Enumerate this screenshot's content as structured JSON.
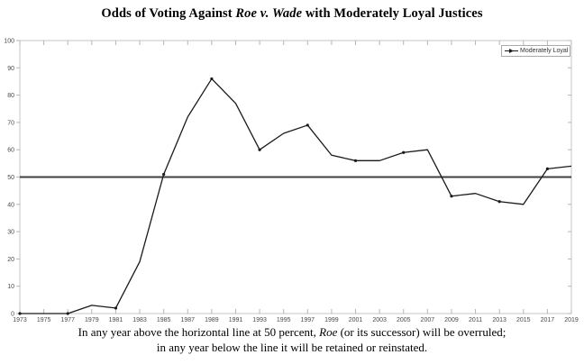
{
  "title": {
    "prefix": "Odds of Voting Against ",
    "italic": "Roe v. Wade",
    "suffix": " with Moderately Loyal Justices"
  },
  "legend": {
    "label": "Moderately Loyal",
    "marker_icon": "line-arrow-marker"
  },
  "caption": {
    "line1_pre": "In any year above the horizontal line at 50 percent, ",
    "line1_italic": "Roe",
    "line1_post": " (or its successor) will be overruled;",
    "line2": "in any year below the line it will be retained or reinstated."
  },
  "colors": {
    "line": "#1a1a1a",
    "reference_line": "#3f3f3f",
    "plot_border": "#c4c4c4",
    "tick": "#b5b5b5",
    "tick_label": "#4a4a4a"
  },
  "chart_data": {
    "type": "line",
    "title": "Odds of Voting Against Roe v. Wade with Moderately Loyal Justices",
    "xlabel": "",
    "ylabel": "",
    "xlim": [
      1973,
      2019
    ],
    "ylim": [
      0,
      100
    ],
    "grid": false,
    "legend_position": "top-right",
    "x_ticks": [
      1973,
      1975,
      1977,
      1979,
      1981,
      1983,
      1985,
      1987,
      1989,
      1991,
      1993,
      1995,
      1997,
      1999,
      2001,
      2003,
      2005,
      2007,
      2009,
      2011,
      2013,
      2015,
      2017,
      2019
    ],
    "y_ticks": [
      0,
      10,
      20,
      30,
      40,
      50,
      60,
      70,
      80,
      90,
      100
    ],
    "reference_line": {
      "y": 50
    },
    "marker_every": 2,
    "series": [
      {
        "name": "Moderately Loyal",
        "x": [
          1973,
          1975,
          1977,
          1979,
          1981,
          1983,
          1985,
          1987,
          1989,
          1991,
          1993,
          1995,
          1997,
          1999,
          2001,
          2003,
          2005,
          2007,
          2009,
          2011,
          2013,
          2015,
          2017,
          2019
        ],
        "values": [
          0,
          0,
          0,
          3,
          2,
          19,
          51,
          72,
          86,
          77,
          60,
          66,
          69,
          58,
          56,
          56,
          59,
          60,
          43,
          44,
          41,
          40,
          53,
          54
        ]
      }
    ]
  }
}
